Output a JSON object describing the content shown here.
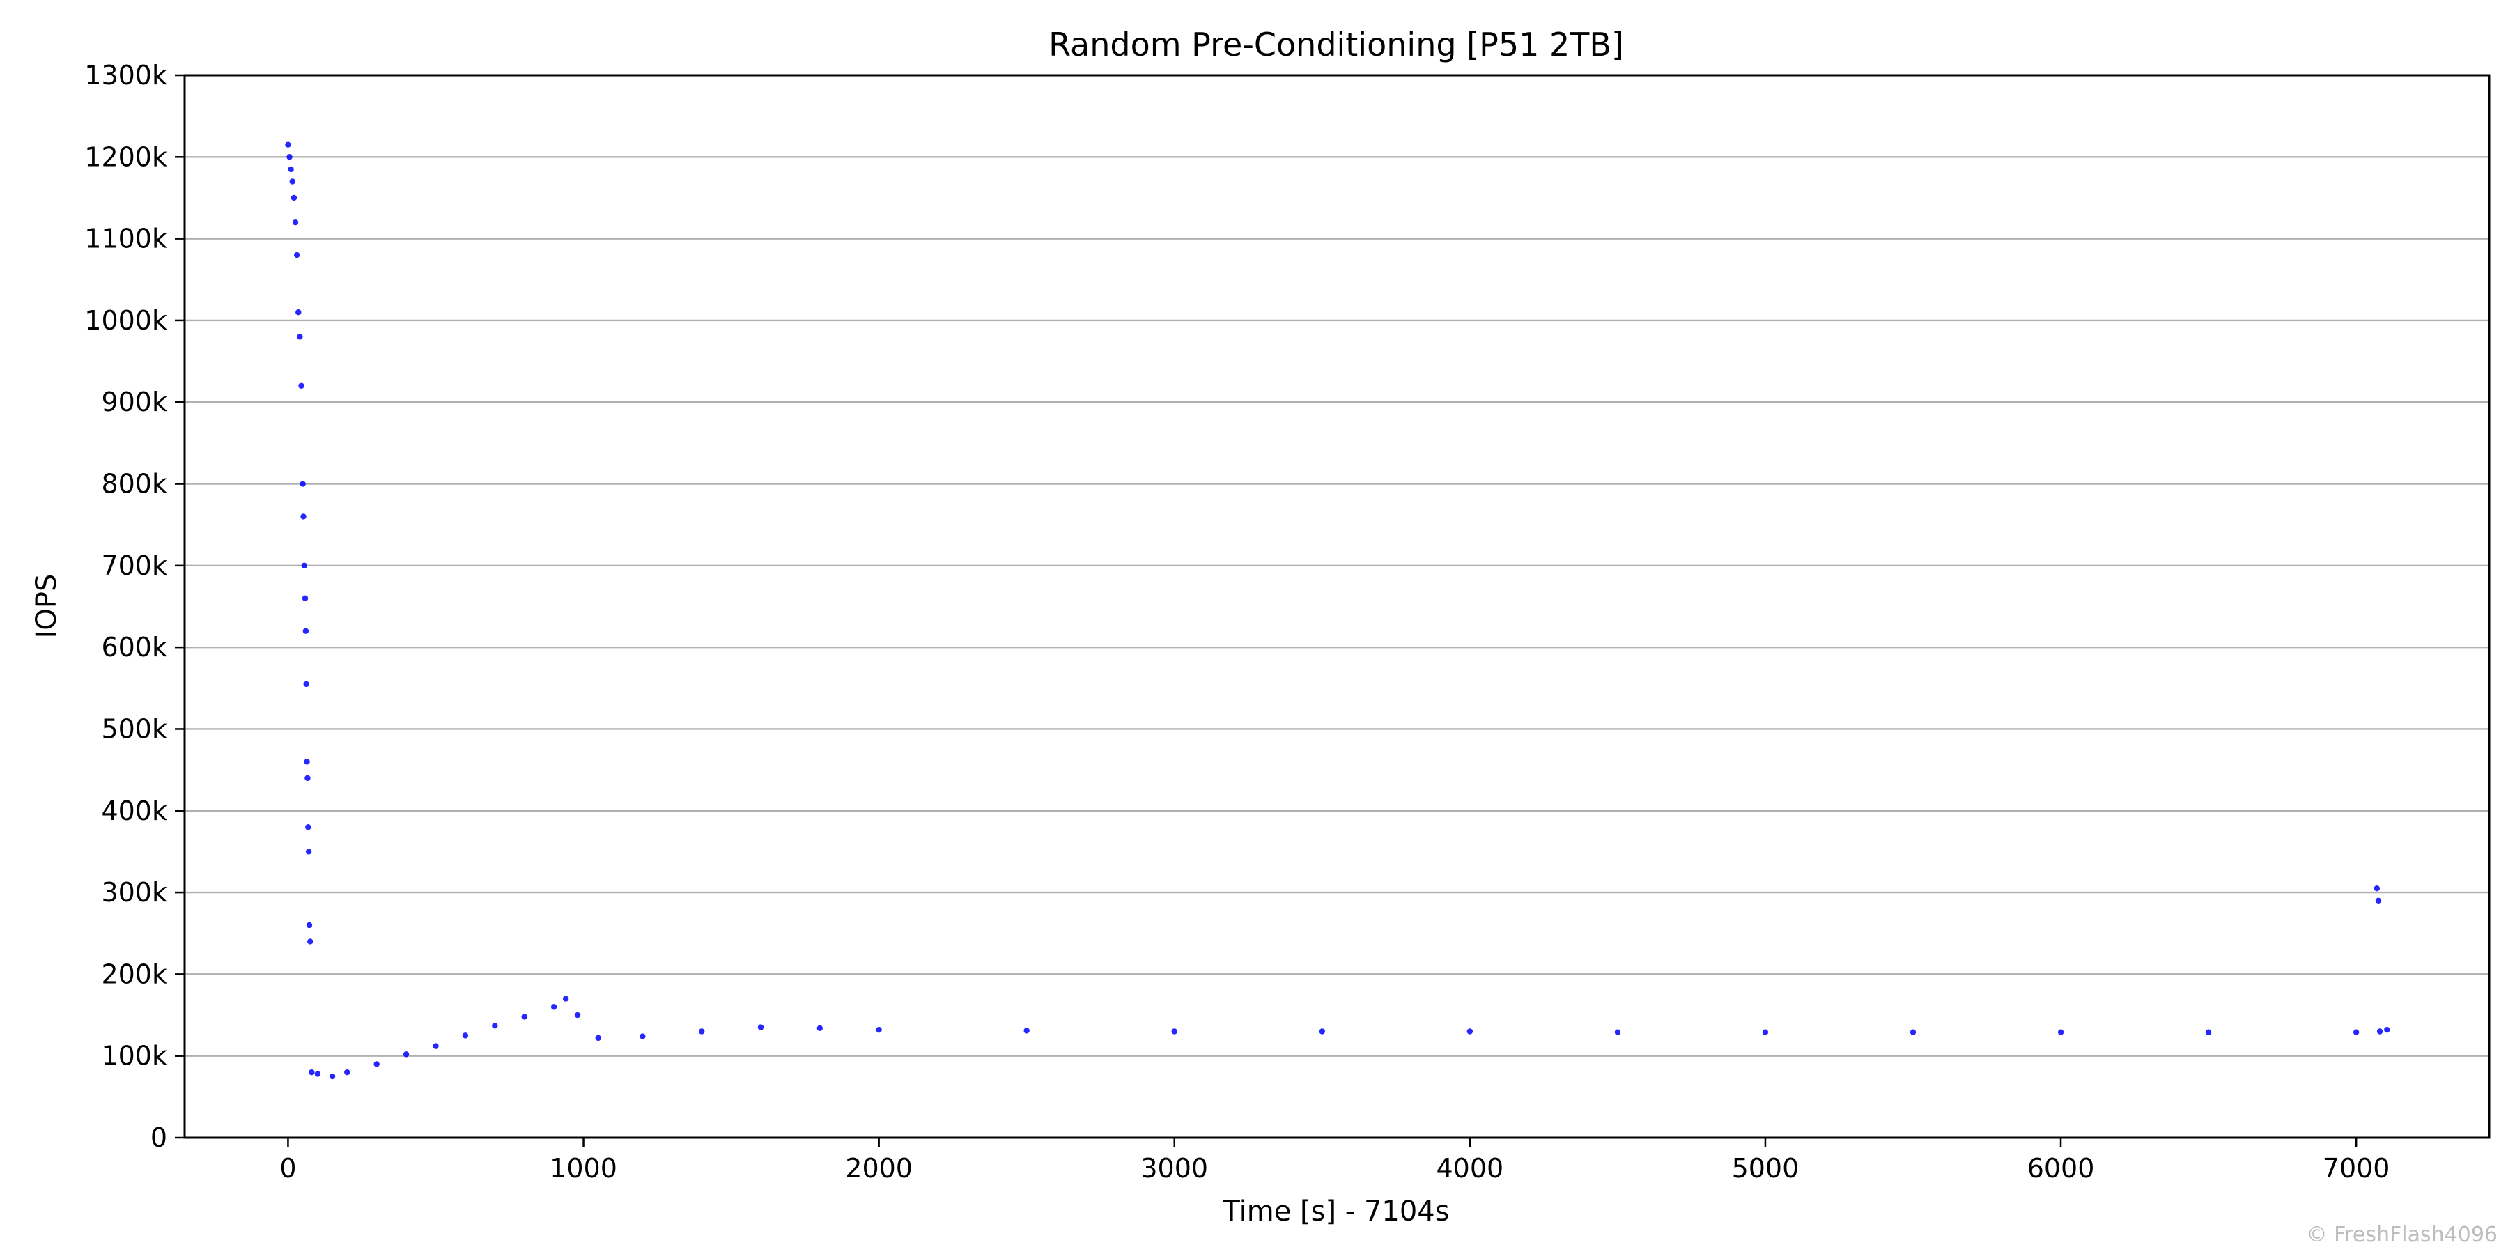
{
  "chart_data": {
    "type": "scatter",
    "title": "Random Pre-Conditioning [P51 2TB]",
    "xlabel": "Time [s] - 7104s",
    "ylabel": "IOPS",
    "xlim": [
      -350,
      7450
    ],
    "ylim": [
      0,
      1300000
    ],
    "x_ticks": [
      0,
      1000,
      2000,
      3000,
      4000,
      5000,
      6000,
      7000
    ],
    "x_tick_labels": [
      "0",
      "1000",
      "2000",
      "3000",
      "4000",
      "5000",
      "6000",
      "7000"
    ],
    "y_ticks": [
      0,
      100000,
      200000,
      300000,
      400000,
      500000,
      600000,
      700000,
      800000,
      900000,
      1000000,
      1100000,
      1200000,
      1300000
    ],
    "y_tick_labels": [
      "0",
      "100k",
      "200k",
      "300k",
      "400k",
      "500k",
      "600k",
      "700k",
      "800k",
      "900k",
      "1000k",
      "1100k",
      "1200k",
      "1300k"
    ],
    "grid": "horizontal",
    "legend": "none",
    "point_color": "#0000ff",
    "series": [
      {
        "values_description": "IOPS per second",
        "points": [
          [
            0,
            1215000
          ],
          [
            5,
            1200000
          ],
          [
            10,
            1185000
          ],
          [
            15,
            1170000
          ],
          [
            20,
            1150000
          ],
          [
            25,
            1120000
          ],
          [
            30,
            1080000
          ],
          [
            35,
            1010000
          ],
          [
            40,
            980000
          ],
          [
            45,
            920000
          ],
          [
            50,
            800000
          ],
          [
            52,
            760000
          ],
          [
            55,
            700000
          ],
          [
            58,
            660000
          ],
          [
            60,
            620000
          ],
          [
            62,
            555000
          ],
          [
            64,
            460000
          ],
          [
            66,
            440000
          ],
          [
            68,
            380000
          ],
          [
            70,
            350000
          ],
          [
            72,
            260000
          ],
          [
            75,
            240000
          ],
          [
            80,
            80000
          ],
          [
            100,
            78000
          ],
          [
            150,
            75000
          ],
          [
            200,
            80000
          ],
          [
            300,
            90000
          ],
          [
            400,
            102000
          ],
          [
            500,
            112000
          ],
          [
            600,
            125000
          ],
          [
            700,
            137000
          ],
          [
            800,
            148000
          ],
          [
            900,
            160000
          ],
          [
            940,
            170000
          ],
          [
            980,
            150000
          ],
          [
            1050,
            122000
          ],
          [
            1200,
            124000
          ],
          [
            1400,
            130000
          ],
          [
            1600,
            135000
          ],
          [
            1800,
            134000
          ],
          [
            2000,
            132000
          ],
          [
            2500,
            131000
          ],
          [
            3000,
            130000
          ],
          [
            3500,
            130000
          ],
          [
            4000,
            130000
          ],
          [
            4500,
            129000
          ],
          [
            5000,
            129000
          ],
          [
            5500,
            129000
          ],
          [
            6000,
            129000
          ],
          [
            6500,
            129000
          ],
          [
            7000,
            129000
          ],
          [
            7070,
            305000
          ],
          [
            7075,
            290000
          ],
          [
            7080,
            130000
          ],
          [
            7104,
            132000
          ]
        ]
      }
    ]
  },
  "watermark": "© FreshFlash4096"
}
